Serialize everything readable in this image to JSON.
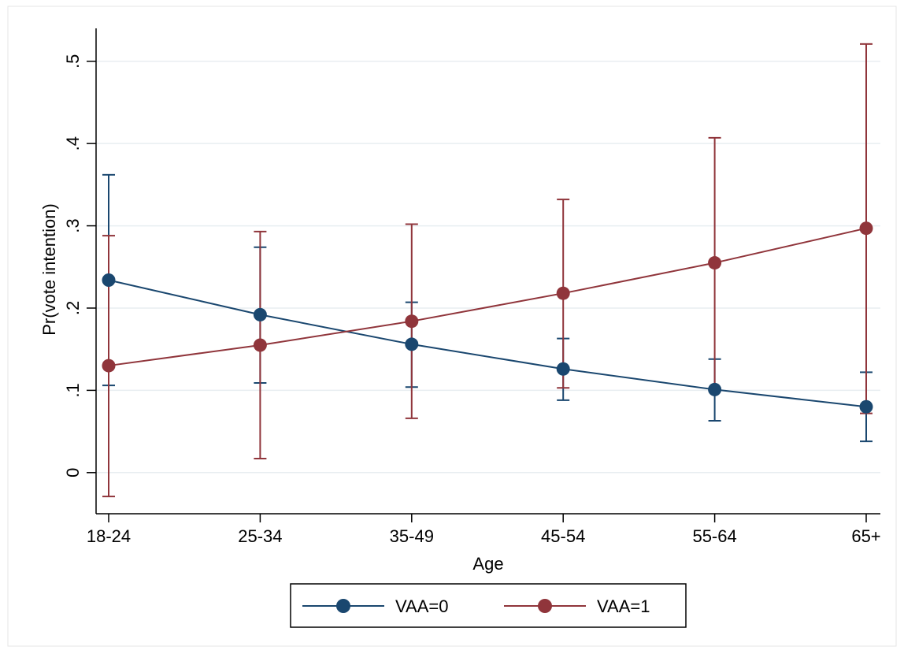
{
  "chart_data": {
    "type": "line",
    "title": "",
    "xlabel": "Age",
    "ylabel": "Pr(vote intention)",
    "categories": [
      "18-24",
      "25-34",
      "35-49",
      "45-54",
      "55-64",
      "65+"
    ],
    "ylim": [
      -0.05,
      0.54
    ],
    "yticks": [
      0,
      0.1,
      0.2,
      0.3,
      0.4,
      0.5
    ],
    "ytick_labels": [
      "0",
      ".1",
      ".2",
      ".3",
      ".4",
      ".5"
    ],
    "grid": true,
    "legend_position": "bottom",
    "series": [
      {
        "name": "VAA=0",
        "color": "#1a476f",
        "values": [
          0.234,
          0.192,
          0.156,
          0.126,
          0.101,
          0.08
        ],
        "ci_lower": [
          0.106,
          0.109,
          0.104,
          0.088,
          0.063,
          0.038
        ],
        "ci_upper": [
          0.362,
          0.274,
          0.207,
          0.163,
          0.138,
          0.122
        ]
      },
      {
        "name": "VAA=1",
        "color": "#90353b",
        "values": [
          0.13,
          0.155,
          0.184,
          0.218,
          0.255,
          0.297
        ],
        "ci_lower": [
          -0.029,
          0.017,
          0.066,
          0.103,
          0.102,
          0.072
        ],
        "ci_upper": [
          0.288,
          0.293,
          0.302,
          0.332,
          0.407,
          0.521
        ]
      }
    ]
  }
}
